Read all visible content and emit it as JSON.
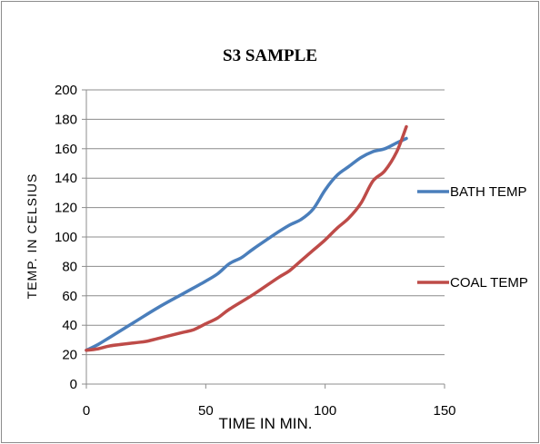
{
  "chart_data": {
    "type": "line",
    "title": "S3 SAMPLE",
    "xlabel": "TIME IN MIN.",
    "ylabel": "TEMP. IN CELSIUS",
    "xlim": [
      0,
      150
    ],
    "ylim": [
      0,
      200
    ],
    "xticks": [
      0,
      50,
      100,
      150
    ],
    "yticks": [
      0,
      20,
      40,
      60,
      80,
      100,
      120,
      140,
      160,
      180,
      200
    ],
    "grid": "horizontal",
    "legend_position": "right",
    "series": [
      {
        "name": "BATH TEMP",
        "color": "#4a7ebb",
        "x": [
          0,
          5,
          10,
          20,
          30,
          40,
          50,
          55,
          60,
          65,
          70,
          80,
          85,
          90,
          95,
          100,
          105,
          110,
          115,
          120,
          125,
          130,
          134
        ],
        "y": [
          23,
          27,
          32,
          42,
          52,
          61,
          70,
          75,
          82,
          86,
          92,
          103,
          108,
          112,
          119,
          132,
          142,
          148,
          154,
          158,
          160,
          164,
          167
        ]
      },
      {
        "name": "COAL TEMP",
        "color": "#be4b48",
        "x": [
          0,
          5,
          10,
          20,
          25,
          30,
          40,
          45,
          50,
          55,
          60,
          70,
          80,
          85,
          90,
          95,
          100,
          105,
          110,
          115,
          120,
          125,
          130,
          134
        ],
        "y": [
          23,
          24,
          26,
          28,
          29,
          31,
          35,
          37,
          41,
          45,
          51,
          61,
          72,
          77,
          84,
          91,
          98,
          106,
          113,
          123,
          138,
          145,
          158,
          175
        ]
      }
    ]
  }
}
